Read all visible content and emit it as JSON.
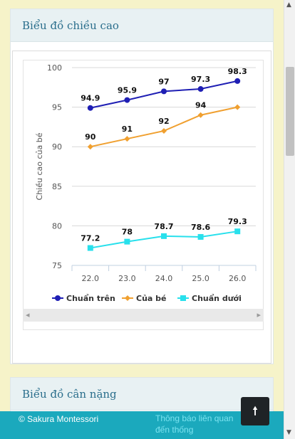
{
  "height_panel": {
    "title": "Biểu đồ chiều cao"
  },
  "weight_panel": {
    "title": "Biểu đồ cân nặng"
  },
  "chart_data": {
    "type": "line",
    "title": "",
    "ylabel": "Chiều cao của bé",
    "xlabel": "",
    "x": [
      "22.0",
      "23.0",
      "24.0",
      "25.0",
      "26.0"
    ],
    "ylim": [
      75,
      100
    ],
    "yticks": [
      75,
      80,
      85,
      90,
      95,
      100
    ],
    "grid": true,
    "legend_position": "bottom",
    "series": [
      {
        "name": "Chuẩn trên",
        "color": "#1f1fb4",
        "marker": "circle",
        "values": [
          94.9,
          95.9,
          97,
          97.3,
          98.3
        ]
      },
      {
        "name": "Của bé",
        "color": "#f0a030",
        "marker": "diamond",
        "values": [
          90,
          91,
          92,
          94,
          95
        ]
      },
      {
        "name": "Chuẩn dưới",
        "color": "#28e0ec",
        "marker": "square",
        "values": [
          77.2,
          78,
          78.7,
          78.6,
          79.3
        ]
      }
    ],
    "data_labels": [
      [
        "94.9",
        "95.9",
        "97",
        "97.3",
        "98.3"
      ],
      [
        "90",
        "91",
        "92",
        "94",
        ""
      ],
      [
        "77.2",
        "78",
        "78.7",
        "78.6",
        "79.3"
      ]
    ]
  },
  "footer": {
    "copyright": "© Sakura Montessori",
    "notice": "Thông báo liên quan đến thống"
  },
  "controls": {
    "back_to_top": "🠕"
  }
}
